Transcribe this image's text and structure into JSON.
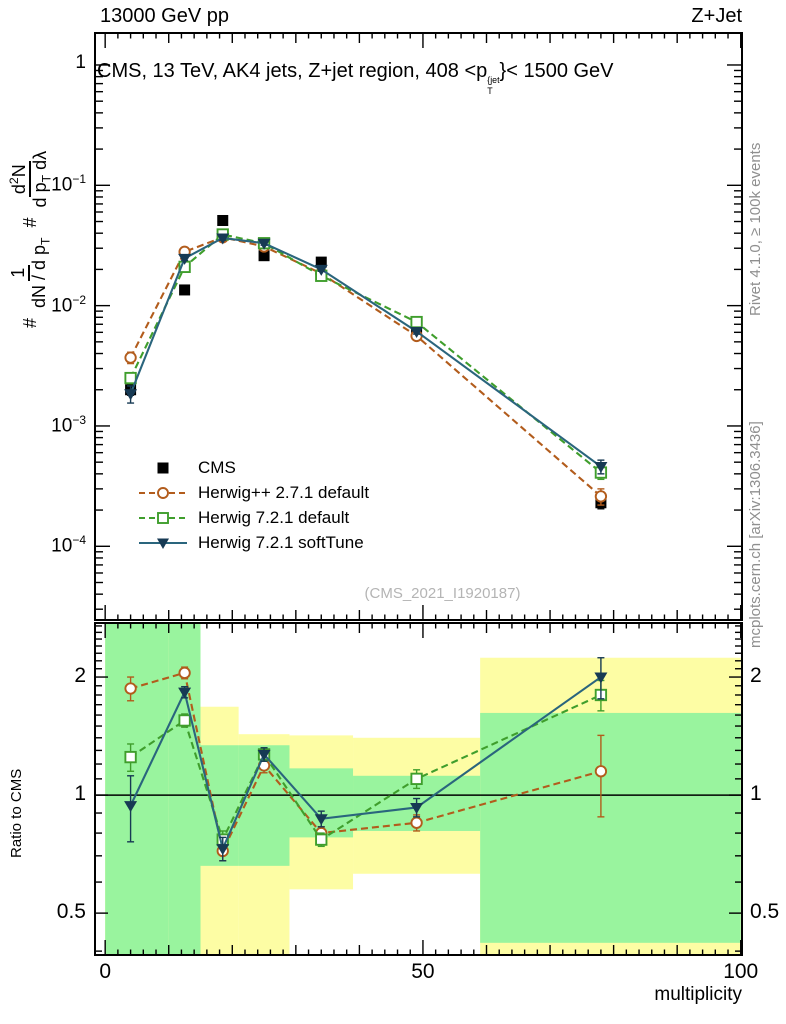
{
  "header": {
    "left": "13000 GeV pp",
    "right": "Z+Jet"
  },
  "title": {
    "prefix": "CMS, 13 TeV, AK4 jets, Z+jet region, 408 <p",
    "sup": "{jet",
    "sub": "T",
    "suffix": "}< 1500 GeV"
  },
  "y_axis_label": {
    "hash1": "#",
    "frac1_num": "1",
    "frac1_den": "dN / d p",
    "frac1_den_sub": "T",
    "hash2": "#",
    "frac2_num_a": "d",
    "frac2_num_sup": "2",
    "frac2_num_b": "N",
    "frac2_den_a": "d p",
    "frac2_den_sub": "T",
    "frac2_den_b": " dλ"
  },
  "ratio_y_label": "Ratio to CMS",
  "x_axis_label": "multiplicity",
  "watermark": "(CMS_2021_I1920187)",
  "side_notes": {
    "top": "Rivet 4.1.0, ≥ 100k events",
    "bottom": "mcplots.cern.ch [arXiv:1306.3436]"
  },
  "colors": {
    "yellow_band": "#fdfda4",
    "green_band": "#99f49e",
    "frame": "#000000",
    "cms": "#000000",
    "herwigpp": "#b25c1c",
    "herwig7": "#3f9e2c",
    "softtune_line": "#2a657d",
    "softtune_marker": "#173a54",
    "watermark_gray": "#b4b4b4",
    "side_gray": "#8f8f8f"
  },
  "chart_data": {
    "type": "line",
    "title": "CMS, 13 TeV, AK4 jets, Z+jet region, 408 <pT{jet}< 1500 GeV",
    "xlabel": "multiplicity",
    "ylabel": "# 1/(dN/dpT) # d2N/(dpT dλ)",
    "ratio_ylabel": "Ratio to CMS",
    "legend_position": "middle-left",
    "grid": false,
    "x": [
      4,
      12.5,
      18.5,
      25,
      34,
      49,
      78
    ],
    "main": {
      "ylog": true,
      "ylim": [
        2.44e-05,
        1.844
      ],
      "xlim": [
        -1.6,
        100.2
      ],
      "ytick_values": [
        1,
        0.1,
        0.01,
        0.001,
        0.0001
      ],
      "ytick_labels": [
        {
          "base": "1",
          "exp": ""
        },
        {
          "base": "10",
          "exp": "−1"
        },
        {
          "base": "10",
          "exp": "−2"
        },
        {
          "base": "10",
          "exp": "−3"
        },
        {
          "base": "10",
          "exp": "−4"
        }
      ]
    },
    "ratio": {
      "ylog": true,
      "ylim": [
        0.391,
        2.747
      ],
      "baseline": 1,
      "ytick_values": [
        2,
        1,
        0.5
      ],
      "ytick_labels": [
        "2",
        "1",
        "0.5"
      ]
    },
    "x_ticks": {
      "major": [
        0,
        50,
        100
      ],
      "major_labels": [
        "0",
        "50",
        "100"
      ],
      "medium_step": 10,
      "minor_step": 2
    },
    "series": [
      {
        "name": "CMS",
        "marker": "square-filled",
        "color": "#000000",
        "line": "none",
        "values": [
          0.002,
          0.0135,
          0.051,
          0.026,
          0.023,
          0.0066,
          0.00023
        ],
        "errors": [
          0.0002,
          0.0008,
          0.0015,
          0.0008,
          0.0006,
          0.00025,
          2.5e-05
        ]
      },
      {
        "name": "Herwig++ 2.7.1 default",
        "marker": "circle-open",
        "color": "#b25c1c",
        "line": "dashed",
        "values": [
          0.0037,
          0.028,
          0.037,
          0.031,
          0.0185,
          0.0056,
          0.00026
        ],
        "errors": [
          0.0004,
          0.0012,
          0.0015,
          0.0012,
          0.0008,
          0.0003,
          4e-05
        ],
        "ratio": [
          1.87,
          2.05,
          0.72,
          1.19,
          0.8,
          0.85,
          1.15
        ],
        "ratio_errors": [
          0.13,
          0.07,
          0.04,
          0.05,
          0.03,
          0.04,
          0.27
        ]
      },
      {
        "name": "Herwig 7.2.1 default",
        "marker": "square-open",
        "color": "#3f9e2c",
        "line": "dashed",
        "values": [
          0.0025,
          0.021,
          0.039,
          0.033,
          0.0177,
          0.0073,
          0.00041
        ],
        "errors": [
          0.00025,
          0.001,
          0.0015,
          0.0012,
          0.0007,
          0.00035,
          5e-05
        ],
        "ratio": [
          1.25,
          1.55,
          0.77,
          1.27,
          0.77,
          1.1,
          1.8
        ],
        "ratio_errors": [
          0.1,
          0.06,
          0.04,
          0.05,
          0.03,
          0.06,
          0.16
        ]
      },
      {
        "name": "Herwig 7.2.1 softTune",
        "marker": "triangle-down-filled",
        "color": "#173a54",
        "line": "solid",
        "line_color": "#2a657d",
        "values": [
          0.00185,
          0.0247,
          0.0365,
          0.033,
          0.02,
          0.0061,
          0.00046
        ],
        "errors": [
          0.0003,
          0.001,
          0.0015,
          0.0012,
          0.0007,
          0.0003,
          6e-05
        ],
        "ratio": [
          0.94,
          1.83,
          0.73,
          1.27,
          0.87,
          0.93,
          2.0
        ],
        "ratio_errors": [
          0.18,
          0.06,
          0.05,
          0.05,
          0.04,
          0.05,
          0.24
        ]
      }
    ],
    "ratio_bands": [
      {
        "x": [
          0,
          10
        ],
        "yellow": [
          0.391,
          2.747
        ],
        "green": [
          0.391,
          2.747
        ]
      },
      {
        "x": [
          10,
          15
        ],
        "yellow": [
          0.391,
          2.747
        ],
        "green": [
          0.391,
          2.747
        ]
      },
      {
        "x": [
          15,
          21
        ],
        "yellow": [
          0.391,
          1.68
        ],
        "green": [
          0.66,
          1.34
        ]
      },
      {
        "x": [
          21,
          29
        ],
        "yellow": [
          0.391,
          1.43
        ],
        "green": [
          0.66,
          1.34
        ]
      },
      {
        "x": [
          29,
          39
        ],
        "yellow": [
          0.575,
          1.42
        ],
        "green": [
          0.78,
          1.17
        ]
      },
      {
        "x": [
          39,
          59
        ],
        "yellow": [
          0.63,
          1.4
        ],
        "green": [
          0.81,
          1.12
        ]
      },
      {
        "x": [
          59,
          100
        ],
        "yellow": [
          0.391,
          2.24
        ],
        "green": [
          0.42,
          1.62
        ]
      }
    ]
  }
}
